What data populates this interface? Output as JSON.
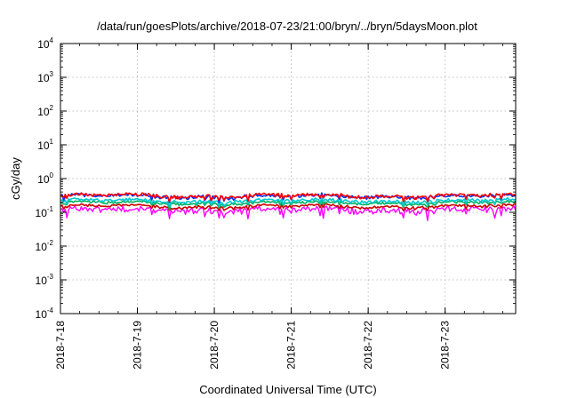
{
  "chart_data": {
    "type": "line",
    "title": "/data/run/goesPlots/archive/2018-07-23/21:00/bryn/../bryn/5daysMoon.plot",
    "xlabel": "Coordinated Universal Time (UTC)",
    "ylabel": "cGy/day",
    "yscale": "log",
    "ylim": [
      0.0001,
      10000
    ],
    "y_ticks": [
      {
        "value": 0.0001,
        "base": "10",
        "exp": "-4"
      },
      {
        "value": 0.001,
        "base": "10",
        "exp": "-3"
      },
      {
        "value": 0.01,
        "base": "10",
        "exp": "-2"
      },
      {
        "value": 0.1,
        "base": "10",
        "exp": "-1"
      },
      {
        "value": 1,
        "base": "10",
        "exp": "0"
      },
      {
        "value": 10,
        "base": "10",
        "exp": "1"
      },
      {
        "value": 100,
        "base": "10",
        "exp": "2"
      },
      {
        "value": 1000,
        "base": "10",
        "exp": "3"
      },
      {
        "value": 10000,
        "base": "10",
        "exp": "4"
      }
    ],
    "xlim": [
      "2018-07-18T00:00",
      "2018-07-23T22:00"
    ],
    "x_ticks": [
      "2018-7-18",
      "2018-7-19",
      "2018-7-20",
      "2018-7-21",
      "2018-7-22",
      "2018-7-23"
    ],
    "grid": true,
    "series": [
      {
        "color": "#ff00ff",
        "base_level": 0.12,
        "dip_depth": 0.45,
        "noise": 0.18,
        "sample_hours": 0.5
      },
      {
        "color": "#cc0000",
        "base_level": 0.15,
        "dip_depth": 0.2,
        "noise": 0.07,
        "sample_hours": 0.5
      },
      {
        "color": "#00b060",
        "base_level": 0.19,
        "dip_depth": 0.22,
        "noise": 0.08,
        "sample_hours": 0.5
      },
      {
        "color": "#00c8d0",
        "base_level": 0.22,
        "dip_depth": 0.25,
        "noise": 0.09,
        "sample_hours": 0.5
      },
      {
        "color": "#0030ff",
        "base_level": 0.3,
        "dip_depth": 0.28,
        "noise": 0.1,
        "sample_hours": 0.5
      },
      {
        "color": "#ff0000",
        "base_level": 0.31,
        "dip_depth": 0.27,
        "noise": 0.1,
        "sample_hours": 0.5
      }
    ]
  }
}
